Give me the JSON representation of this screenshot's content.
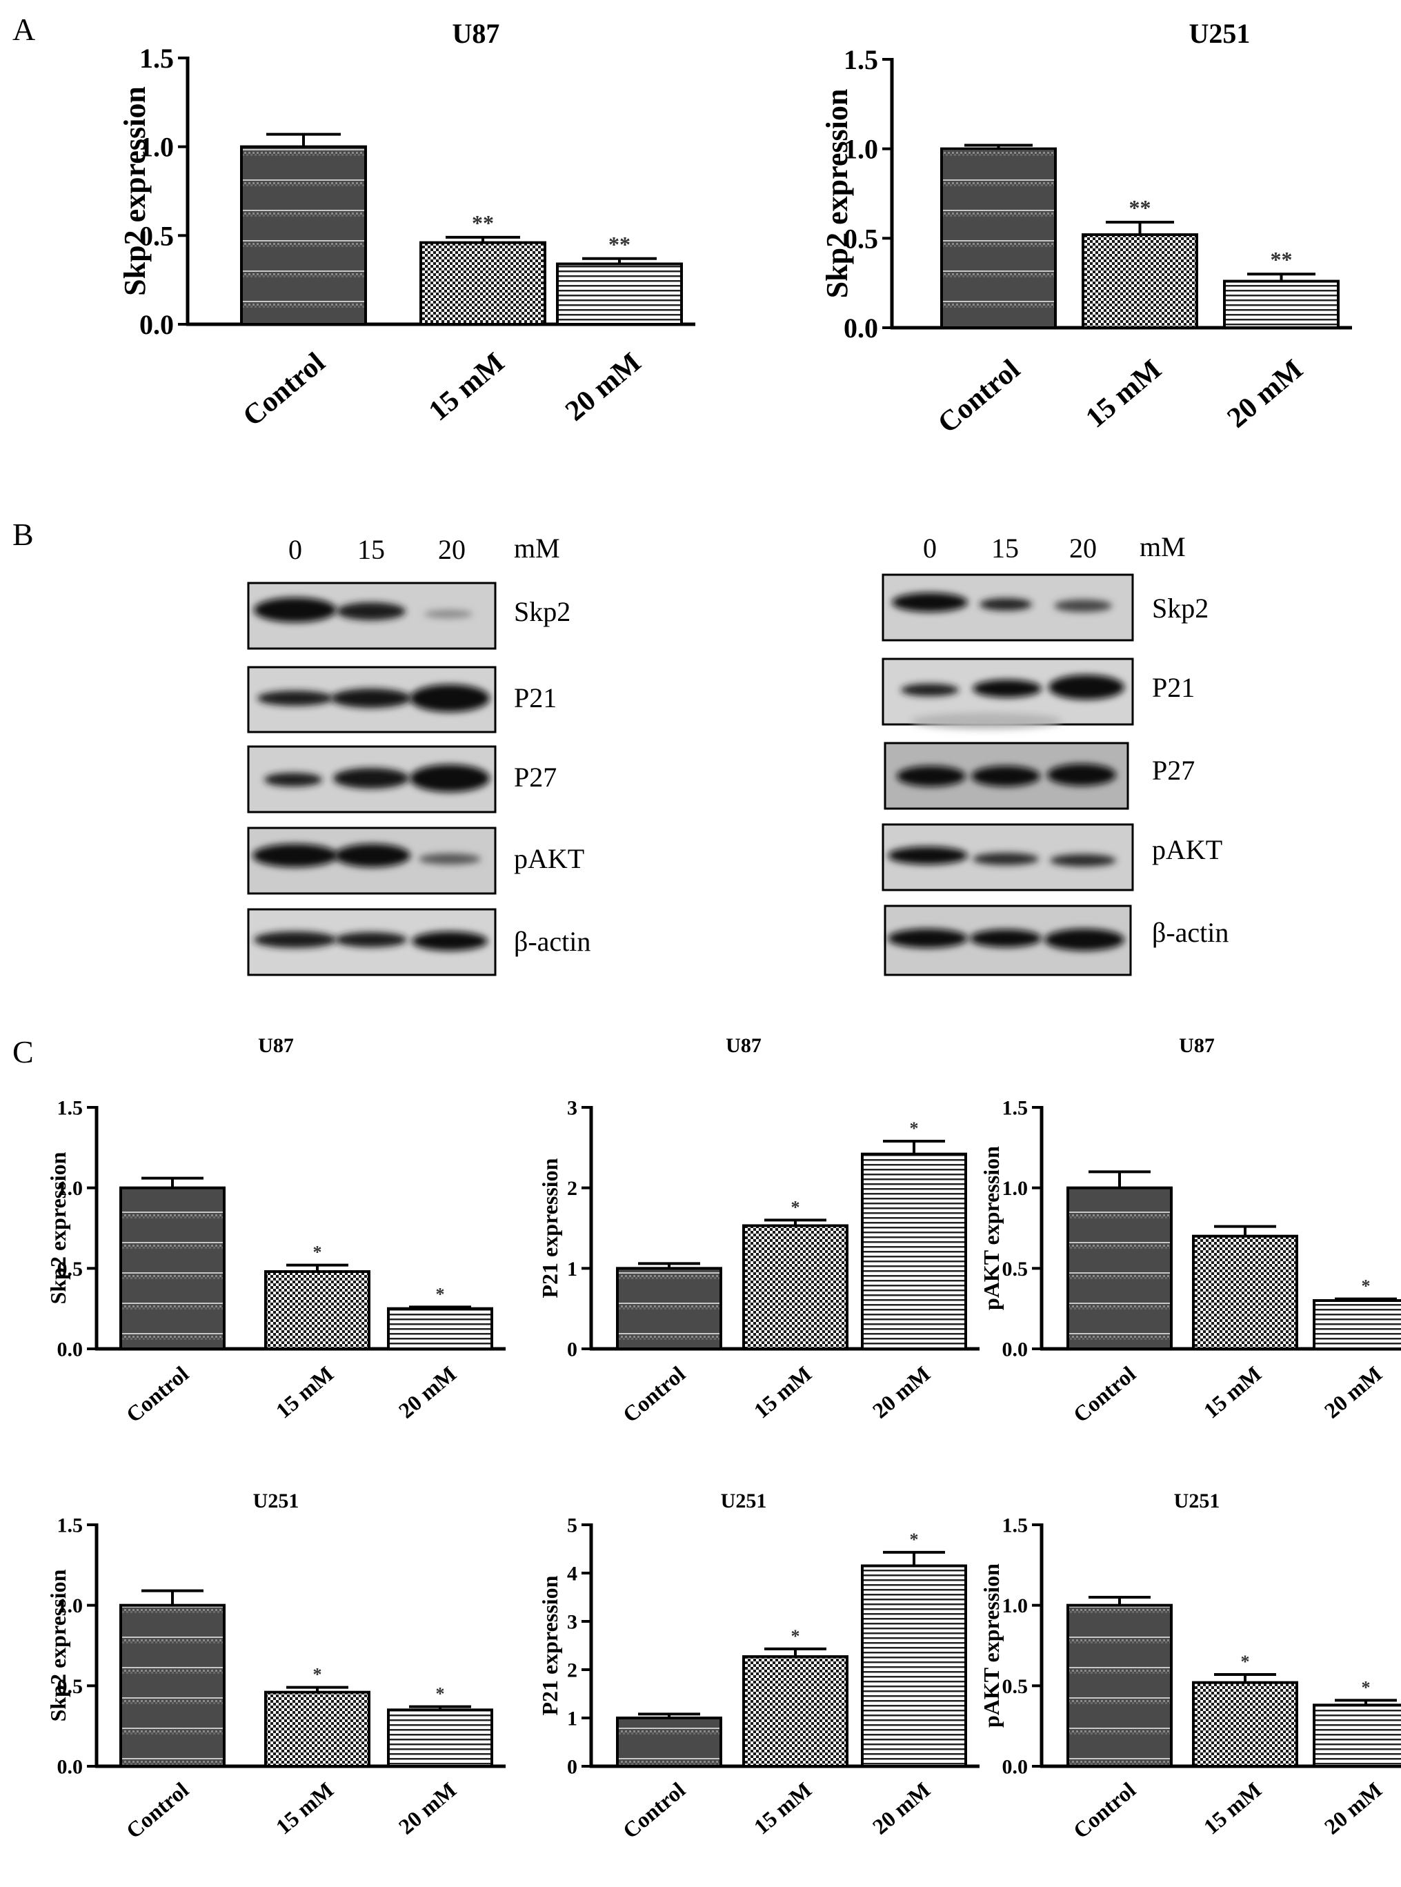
{
  "panels": {
    "a": "A",
    "b": "B",
    "c": "C"
  },
  "blots": {
    "conc_labels": [
      "0",
      "15",
      "20"
    ],
    "unit": "mM",
    "proteins": [
      "Skp2",
      "P21",
      "P27",
      "pAKT",
      "β-actin"
    ]
  },
  "chart_data": [
    {
      "type": "bar",
      "title": "U87",
      "ylabel": "Skp2 expression",
      "categories": [
        "Control",
        "15 mM",
        "20 mM"
      ],
      "values": [
        1.0,
        0.46,
        0.34
      ],
      "errors": [
        0.07,
        0.03,
        0.03
      ],
      "significance": [
        "",
        "**",
        "**"
      ],
      "ylim": [
        0,
        1.5
      ],
      "yticks": [
        "0.0",
        "0.5",
        "1.0",
        "1.5"
      ]
    },
    {
      "type": "bar",
      "title": "U251",
      "ylabel": "Skp2 expression",
      "categories": [
        "Control",
        "15 mM",
        "20 mM"
      ],
      "values": [
        1.0,
        0.52,
        0.26
      ],
      "errors": [
        0.02,
        0.07,
        0.04
      ],
      "significance": [
        "",
        "**",
        "**"
      ],
      "ylim": [
        0,
        1.5
      ],
      "yticks": [
        "0.0",
        "0.5",
        "1.0",
        "1.5"
      ]
    },
    {
      "type": "bar",
      "title": "U87",
      "ylabel": "Skp2 expression",
      "categories": [
        "Control",
        "15 mM",
        "20 mM"
      ],
      "values": [
        1.0,
        0.48,
        0.25
      ],
      "errors": [
        0.06,
        0.04,
        0.01
      ],
      "significance": [
        "",
        "*",
        "*"
      ],
      "ylim": [
        0,
        1.5
      ],
      "yticks": [
        "0.0",
        "0.5",
        "1.0",
        "1.5"
      ]
    },
    {
      "type": "bar",
      "title": "U87",
      "ylabel": "P21 expression",
      "categories": [
        "Control",
        "15 mM",
        "20 mM"
      ],
      "values": [
        1.0,
        1.53,
        2.42
      ],
      "errors": [
        0.06,
        0.07,
        0.16
      ],
      "significance": [
        "",
        "*",
        "*"
      ],
      "ylim": [
        0,
        3
      ],
      "yticks": [
        "0",
        "1",
        "2",
        "3"
      ]
    },
    {
      "type": "bar",
      "title": "U87",
      "ylabel": "pAKT expression",
      "categories": [
        "Control",
        "15 mM",
        "20 mM"
      ],
      "values": [
        1.0,
        0.7,
        0.3
      ],
      "errors": [
        0.1,
        0.06,
        0.01
      ],
      "significance": [
        "",
        "",
        "*"
      ],
      "ylim": [
        0,
        1.5
      ],
      "yticks": [
        "0.0",
        "0.5",
        "1.0",
        "1.5"
      ]
    },
    {
      "type": "bar",
      "title": "U251",
      "ylabel": "Skp2 expression",
      "categories": [
        "Control",
        "15 mM",
        "20 mM"
      ],
      "values": [
        1.0,
        0.46,
        0.35
      ],
      "errors": [
        0.09,
        0.03,
        0.02
      ],
      "significance": [
        "",
        "*",
        "*"
      ],
      "ylim": [
        0,
        1.5
      ],
      "yticks": [
        "0.0",
        "0.5",
        "1.0",
        "1.5"
      ]
    },
    {
      "type": "bar",
      "title": "U251",
      "ylabel": "P21 expression",
      "categories": [
        "Control",
        "15 mM",
        "20 mM"
      ],
      "values": [
        1.0,
        2.27,
        4.15
      ],
      "errors": [
        0.08,
        0.16,
        0.28
      ],
      "significance": [
        "",
        "*",
        "*"
      ],
      "ylim": [
        0,
        5
      ],
      "yticks": [
        "0",
        "1",
        "2",
        "3",
        "4",
        "5"
      ]
    },
    {
      "type": "bar",
      "title": "U251",
      "ylabel": "pAKT expression",
      "categories": [
        "Control",
        "15 mM",
        "20 mM"
      ],
      "values": [
        1.0,
        0.52,
        0.38
      ],
      "errors": [
        0.05,
        0.05,
        0.03
      ],
      "significance": [
        "",
        "*",
        "*"
      ],
      "ylim": [
        0,
        1.5
      ],
      "yticks": [
        "0.0",
        "0.5",
        "1.0",
        "1.5"
      ]
    }
  ]
}
